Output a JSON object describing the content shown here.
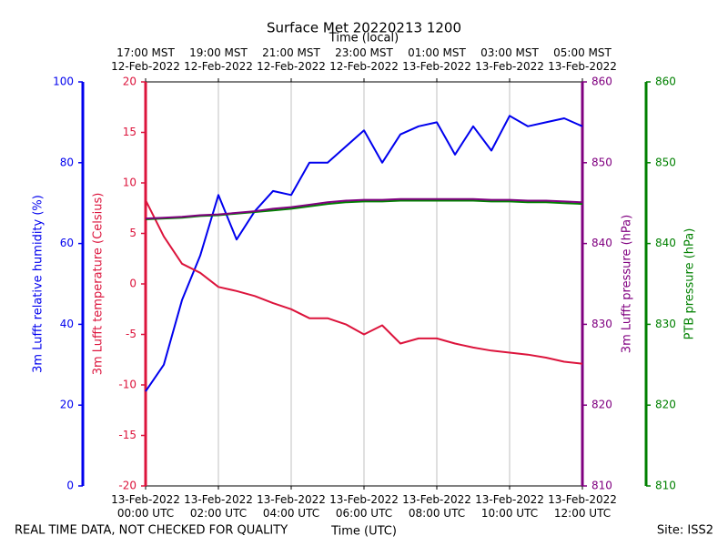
{
  "chart_data": {
    "type": "line",
    "title": "Surface Met 20220213 1200",
    "xlabel": "Time (UTC)",
    "x2label": "Time (local)",
    "footer_left": "REAL TIME DATA, NOT CHECKED FOR QUALITY",
    "footer_right": "Site: ISS2",
    "x": [
      "2022-02-13T00:00",
      "2022-02-13T00:30",
      "2022-02-13T01:00",
      "2022-02-13T01:30",
      "2022-02-13T02:00",
      "2022-02-13T02:30",
      "2022-02-13T03:00",
      "2022-02-13T03:30",
      "2022-02-13T04:00",
      "2022-02-13T04:30",
      "2022-02-13T05:00",
      "2022-02-13T05:30",
      "2022-02-13T06:00",
      "2022-02-13T06:30",
      "2022-02-13T07:00",
      "2022-02-13T07:30",
      "2022-02-13T08:00",
      "2022-02-13T08:30",
      "2022-02-13T09:00",
      "2022-02-13T09:30",
      "2022-02-13T10:00",
      "2022-02-13T10:30",
      "2022-02-13T11:00",
      "2022-02-13T11:30",
      "2022-02-13T12:00"
    ],
    "xlim": [
      "2022-02-13T00:00",
      "2022-02-13T12:00"
    ],
    "xticks": [
      {
        "value": "2022-02-13T00:00",
        "label": "13-Feb-2022\n00:00 UTC"
      },
      {
        "value": "2022-02-13T02:00",
        "label": "13-Feb-2022\n02:00 UTC"
      },
      {
        "value": "2022-02-13T04:00",
        "label": "13-Feb-2022\n04:00 UTC"
      },
      {
        "value": "2022-02-13T06:00",
        "label": "13-Feb-2022\n06:00 UTC"
      },
      {
        "value": "2022-02-13T08:00",
        "label": "13-Feb-2022\n08:00 UTC"
      },
      {
        "value": "2022-02-13T10:00",
        "label": "13-Feb-2022\n10:00 UTC"
      },
      {
        "value": "2022-02-13T12:00",
        "label": "13-Feb-2022\n12:00 UTC"
      }
    ],
    "x2ticks": [
      {
        "value": "2022-02-13T00:00",
        "label": "17:00 MST\n12-Feb-2022"
      },
      {
        "value": "2022-02-13T02:00",
        "label": "19:00 MST\n12-Feb-2022"
      },
      {
        "value": "2022-02-13T04:00",
        "label": "21:00 MST\n12-Feb-2022"
      },
      {
        "value": "2022-02-13T06:00",
        "label": "23:00 MST\n12-Feb-2022"
      },
      {
        "value": "2022-02-13T08:00",
        "label": "01:00 MST\n13-Feb-2022"
      },
      {
        "value": "2022-02-13T10:00",
        "label": "03:00 MST\n13-Feb-2022"
      },
      {
        "value": "2022-02-13T12:00",
        "label": "05:00 MST\n13-Feb-2022"
      }
    ],
    "grid": true,
    "ylabel": "3m Lufft relative humidity (%)",
    "ylim": [
      0,
      100
    ],
    "yticks": [
      0,
      20,
      40,
      60,
      80,
      100
    ],
    "y2label": "3m Lufft temperature (Celsius)",
    "y2lim": [
      -20,
      20
    ],
    "y2ticks": [
      -20,
      -15,
      -10,
      -5,
      0,
      5,
      10,
      15,
      20
    ],
    "y3label": "3m Lufft pressure (hPa)",
    "y3lim": [
      810,
      860
    ],
    "y3ticks": [
      810,
      820,
      830,
      840,
      850,
      860
    ],
    "y4label": "PTB pressure (hPa)",
    "y4lim": [
      810,
      860
    ],
    "y4ticks": [
      810,
      820,
      830,
      840,
      850,
      860
    ],
    "series": [
      {
        "name": "3m Lufft relative humidity",
        "color": "#0000ee",
        "axis": "y",
        "values": [
          23.4,
          30,
          46,
          57,
          72,
          61,
          68,
          73,
          72,
          80,
          80,
          84,
          88,
          80,
          87,
          89,
          90,
          82,
          89,
          83,
          91.6,
          89,
          90,
          91,
          89
        ]
      },
      {
        "name": "3m Lufft temperature",
        "color": "#dc143c",
        "axis": "y2",
        "values": [
          8.3,
          4.7,
          2,
          1.1,
          -0.3,
          -0.7,
          -1.2,
          -1.9,
          -2.5,
          -3.4,
          -3.4,
          -4,
          -5,
          -4.1,
          -5.9,
          -5.4,
          -5.4,
          -5.9,
          -6.3,
          -6.6,
          -6.8,
          -7,
          -7.3,
          -7.7,
          -7.9
        ]
      },
      {
        "name": "PTB pressure",
        "color": "#008000",
        "axis": "y4",
        "values": [
          843,
          843.1,
          843.2,
          843.4,
          843.5,
          843.7,
          843.9,
          844.1,
          844.3,
          844.6,
          844.9,
          845.1,
          845.2,
          845.2,
          845.3,
          845.3,
          845.3,
          845.3,
          845.3,
          845.2,
          845.2,
          845.1,
          845.1,
          845,
          844.9
        ]
      },
      {
        "name": "3m Lufft pressure",
        "color": "#800080",
        "axis": "y3",
        "values": [
          843.1,
          843.2,
          843.3,
          843.5,
          843.6,
          843.8,
          844,
          844.3,
          844.5,
          844.8,
          845.1,
          845.3,
          845.4,
          845.4,
          845.5,
          845.5,
          845.5,
          845.5,
          845.5,
          845.4,
          845.4,
          845.3,
          845.3,
          845.2,
          845.1
        ]
      }
    ]
  }
}
